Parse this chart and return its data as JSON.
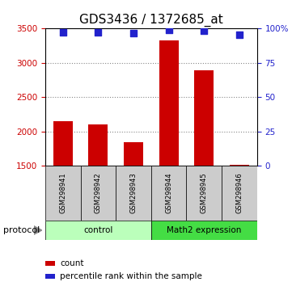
{
  "title": "GDS3436 / 1372685_at",
  "samples": [
    "GSM298941",
    "GSM298942",
    "GSM298943",
    "GSM298944",
    "GSM298945",
    "GSM298946"
  ],
  "counts": [
    2150,
    2100,
    1840,
    3330,
    2890,
    1510
  ],
  "percentile_ranks": [
    97.5,
    97.5,
    96.5,
    99.0,
    98.5,
    95.5
  ],
  "ylim_left": [
    1500,
    3500
  ],
  "ylim_right": [
    0,
    100
  ],
  "yticks_left": [
    1500,
    2000,
    2500,
    3000,
    3500
  ],
  "yticks_right": [
    0,
    25,
    50,
    75,
    100
  ],
  "ytick_labels_right": [
    "0",
    "25",
    "50",
    "75",
    "100%"
  ],
  "bar_color": "#cc0000",
  "scatter_color": "#2222cc",
  "bar_bottom": 1500,
  "groups": [
    {
      "label": "control",
      "indices": [
        0,
        1,
        2
      ],
      "color": "#bbffbb"
    },
    {
      "label": "Math2 expression",
      "indices": [
        3,
        4,
        5
      ],
      "color": "#44dd44"
    }
  ],
  "protocol_label": "protocol",
  "legend_count_label": "count",
  "legend_pct_label": "percentile rank within the sample",
  "title_fontsize": 11,
  "axis_label_color_left": "#cc0000",
  "axis_label_color_right": "#2222cc",
  "grid_color": "#888888",
  "background_plot": "#ffffff",
  "background_tickarea": "#cccccc",
  "scatter_marker_size": 30
}
